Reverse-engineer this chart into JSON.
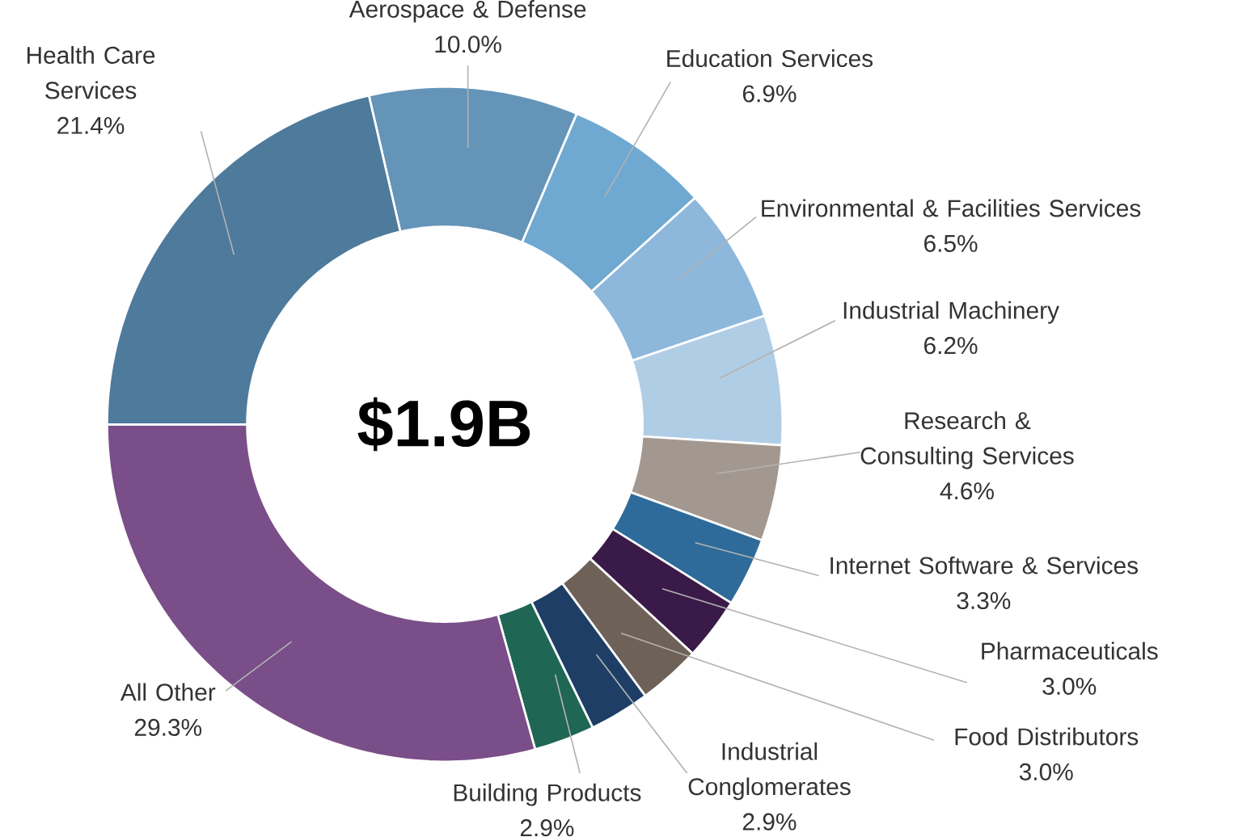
{
  "chart_data": {
    "type": "donut",
    "categories": [
      "Aerospace & Defense",
      "Education Services",
      "Environmental & Facilities Services",
      "Industrial Machinery",
      "Research & Consulting Services",
      "Internet Software & Services",
      "Pharmaceuticals",
      "Food Distributors",
      "Industrial Conglomerates",
      "Building Products",
      "All Other",
      "Health Care Services"
    ],
    "values": [
      10.0,
      6.9,
      6.5,
      6.2,
      4.6,
      3.3,
      3.0,
      3.0,
      2.9,
      2.9,
      29.3,
      21.4
    ],
    "colors": [
      "#6494b8",
      "#6fa8d0",
      "#8db8dc",
      "#b0cde6",
      "#a39890",
      "#2e6b9a",
      "#3a1a48",
      "#6e6258",
      "#1e3e66",
      "#1f6655",
      "#7a4e88",
      "#4e7a9c"
    ],
    "value_labels": [
      "10.0%",
      "6.9%",
      "6.5%",
      "6.2%",
      "4.6%",
      "3.3%",
      "3.0%",
      "3.0%",
      "2.9%",
      "2.9%",
      "29.3%",
      "21.4%"
    ],
    "annotations": [
      "$1.9B"
    ]
  }
}
